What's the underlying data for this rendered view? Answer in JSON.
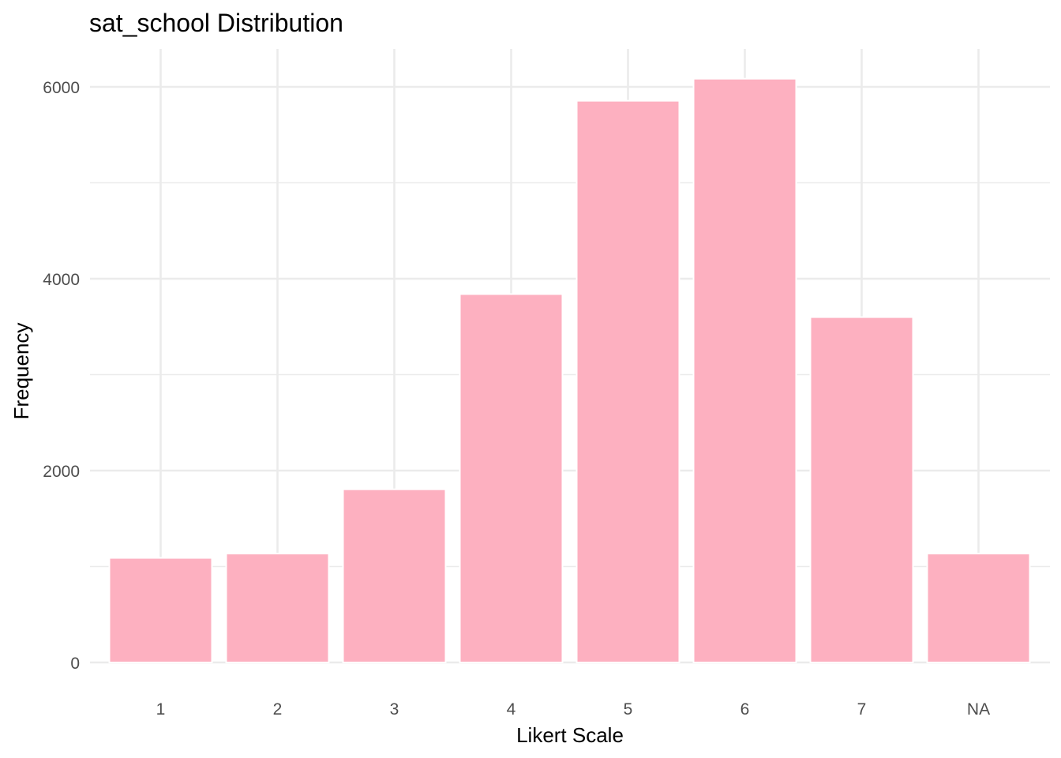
{
  "chart_data": {
    "type": "bar",
    "title": "sat_school Distribution",
    "xlabel": "Likert Scale",
    "ylabel": "Frequency",
    "categories": [
      "1",
      "2",
      "3",
      "4",
      "5",
      "6",
      "7",
      "NA"
    ],
    "values": [
      1090,
      1135,
      1805,
      3840,
      5855,
      6085,
      3600,
      1135
    ],
    "ylim": [
      0,
      6400
    ],
    "yticks": [
      0,
      2000,
      4000,
      6000
    ],
    "ytick_labels": [
      "0",
      "2000",
      "4000",
      "6000"
    ],
    "grid": true,
    "legend": "none",
    "bar_color": "#fdb0c0",
    "bar_outline": "#ffffff",
    "grid_color": "#ebebeb"
  }
}
